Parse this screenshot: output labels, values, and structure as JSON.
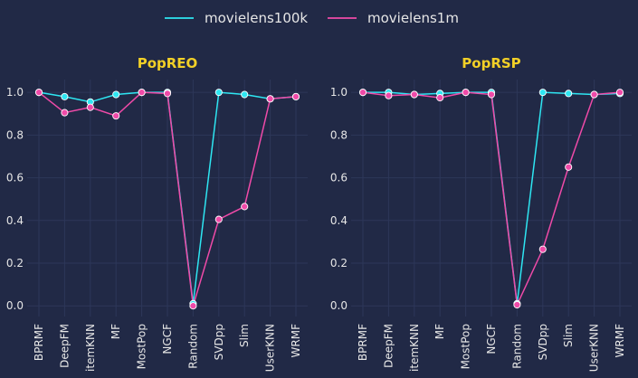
{
  "colors": {
    "background": "#212946",
    "grid": "#2d3759",
    "title": "#f2d027",
    "text": "#e6e6e6",
    "movielens100k": "#2ee6f2",
    "movielens1m": "#ef4aa8"
  },
  "legend": {
    "placement": "top-center",
    "entries": [
      "movielens100k",
      "movielens1m"
    ]
  },
  "chart_data": [
    {
      "type": "line",
      "title": "PopREO",
      "categories": [
        "BPRMF",
        "DeepFM",
        "itemKNN",
        "MF",
        "MostPop",
        "NGCF",
        "Random",
        "SVDpp",
        "Slim",
        "UserKNN",
        "WRMF"
      ],
      "ylim": [
        -0.05,
        1.06
      ],
      "yticks": [
        "0.0",
        "0.2",
        "0.4",
        "0.6",
        "0.8",
        "1.0"
      ],
      "grid": true,
      "series": [
        {
          "name": "movielens100k",
          "values": [
            1.0,
            0.98,
            0.955,
            0.99,
            1.0,
            1.0,
            0.01,
            1.0,
            0.99,
            0.97,
            0.98
          ]
        },
        {
          "name": "movielens1m",
          "values": [
            1.0,
            0.905,
            0.93,
            0.89,
            1.0,
            0.995,
            0.0,
            0.405,
            0.465,
            0.97,
            0.98
          ]
        }
      ]
    },
    {
      "type": "line",
      "title": "PopRSP",
      "categories": [
        "BPRMF",
        "DeepFM",
        "itemKNN",
        "MF",
        "MostPop",
        "NGCF",
        "Random",
        "SVDpp",
        "Slim",
        "UserKNN",
        "WRMF"
      ],
      "ylim": [
        -0.05,
        1.06
      ],
      "yticks": [
        "0.0",
        "0.2",
        "0.4",
        "0.6",
        "0.8",
        "1.0"
      ],
      "grid": true,
      "series": [
        {
          "name": "movielens100k",
          "values": [
            1.0,
            1.0,
            0.99,
            0.995,
            1.0,
            1.0,
            0.01,
            1.0,
            0.995,
            0.99,
            0.995
          ]
        },
        {
          "name": "movielens1m",
          "values": [
            1.0,
            0.985,
            0.99,
            0.975,
            1.0,
            0.99,
            0.005,
            0.265,
            0.65,
            0.99,
            1.0
          ]
        }
      ]
    }
  ]
}
